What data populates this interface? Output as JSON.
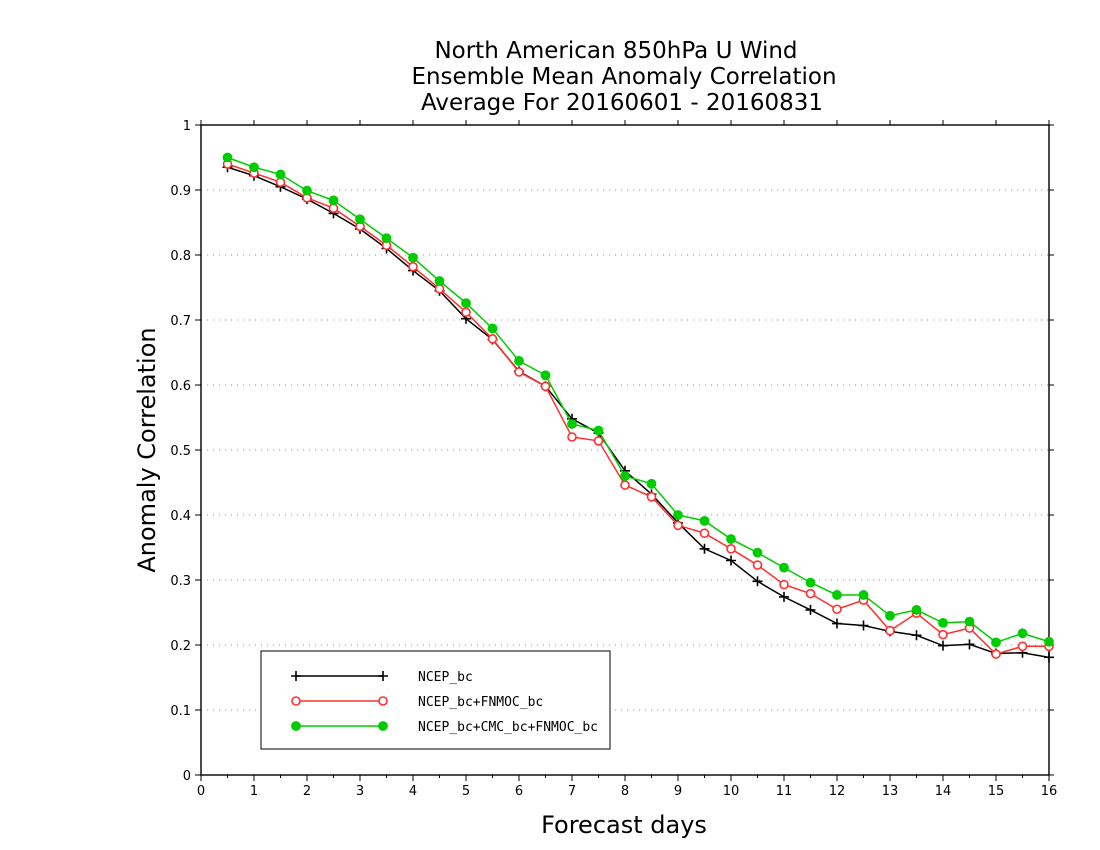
{
  "chart_data": {
    "type": "line",
    "title": [
      "North American 850hPa U Wind",
      "Ensemble Mean Anomaly Correlation",
      "Average For 20160601 - 20160831"
    ],
    "xlabel": "Forecast days",
    "ylabel": "Anomaly Correlation",
    "xlim": [
      0,
      16
    ],
    "ylim": [
      0,
      1
    ],
    "x_ticks": [
      "0",
      "1",
      "2",
      "3",
      "4",
      "5",
      "6",
      "7",
      "8",
      "9",
      "10",
      "11",
      "12",
      "13",
      "14",
      "15",
      "16"
    ],
    "y_ticks": [
      "0",
      "0.1",
      "0.2",
      "0.3",
      "0.4",
      "0.5",
      "0.6",
      "0.7",
      "0.8",
      "0.9",
      "1"
    ],
    "grid": "horizontal dotted",
    "legend_position": "bottom-left",
    "x": [
      0.5,
      1,
      1.5,
      2,
      2.5,
      3,
      3.5,
      4,
      4.5,
      5,
      5.5,
      6,
      6.5,
      7,
      7.5,
      8,
      8.5,
      9,
      9.5,
      10,
      10.5,
      11,
      11.5,
      12,
      12.5,
      13,
      13.5,
      14,
      14.5,
      15,
      15.5,
      16
    ],
    "series": [
      {
        "name": "NCEP_bc",
        "color": "#000000",
        "marker": "plus",
        "values": [
          0.935,
          0.922,
          0.905,
          0.886,
          0.864,
          0.84,
          0.81,
          0.776,
          0.745,
          0.702,
          0.67,
          0.621,
          0.598,
          0.548,
          0.526,
          0.468,
          0.432,
          0.388,
          0.348,
          0.33,
          0.298,
          0.274,
          0.254,
          0.233,
          0.23,
          0.221,
          0.215,
          0.199,
          0.201,
          0.187,
          0.188,
          0.181
        ]
      },
      {
        "name": "NCEP_bc+FNMOC_bc",
        "color": "#ff3030",
        "marker": "open-circle",
        "values": [
          0.94,
          0.926,
          0.912,
          0.888,
          0.872,
          0.844,
          0.815,
          0.782,
          0.748,
          0.712,
          0.671,
          0.62,
          0.598,
          0.52,
          0.514,
          0.446,
          0.428,
          0.384,
          0.372,
          0.348,
          0.323,
          0.293,
          0.279,
          0.255,
          0.269,
          0.222,
          0.249,
          0.216,
          0.226,
          0.186,
          0.198,
          0.198
        ]
      },
      {
        "name": "NCEP_bc+CMC_bc+FNMOC_bc",
        "color": "#00cc00",
        "marker": "filled-circle",
        "values": [
          0.95,
          0.935,
          0.924,
          0.899,
          0.884,
          0.855,
          0.826,
          0.796,
          0.76,
          0.726,
          0.687,
          0.637,
          0.615,
          0.54,
          0.53,
          0.46,
          0.448,
          0.4,
          0.391,
          0.363,
          0.342,
          0.319,
          0.296,
          0.277,
          0.277,
          0.245,
          0.254,
          0.234,
          0.236,
          0.204,
          0.218,
          0.205
        ]
      }
    ]
  }
}
